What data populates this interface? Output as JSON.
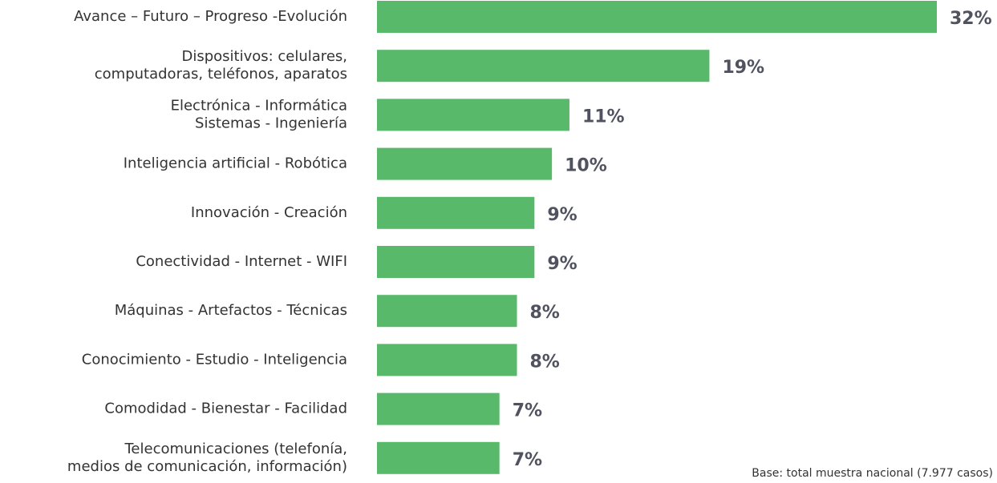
{
  "chart_data": {
    "type": "hbar",
    "categories": [
      [
        "Avance – Futuro – Progreso -Evolución"
      ],
      [
        "Dispositivos: celulares,",
        "computadoras, teléfonos, aparatos"
      ],
      [
        "Electrónica - Informática",
        "Sistemas - Ingeniería"
      ],
      [
        "Inteligencia artificial - Robótica"
      ],
      [
        "Innovación - Creación"
      ],
      [
        "Conectividad - Internet - WIFI"
      ],
      [
        "Máquinas - Artefactos - Técnicas"
      ],
      [
        "Conocimiento - Estudio - Inteligencia"
      ],
      [
        "Comodidad - Bienestar - Facilidad"
      ],
      [
        "Telecomunicaciones (telefonía,",
        "medios de comunicación, información)"
      ]
    ],
    "values": [
      32,
      19,
      11,
      10,
      9,
      9,
      8,
      8,
      7,
      7
    ],
    "value_labels": [
      "32%",
      "19%",
      "11%",
      "10%",
      "9%",
      "9%",
      "8%",
      "8%",
      "7%",
      "7%"
    ],
    "color": "#58b96a",
    "footnote": "Base: total muestra nacional  (7.977 casos)"
  }
}
